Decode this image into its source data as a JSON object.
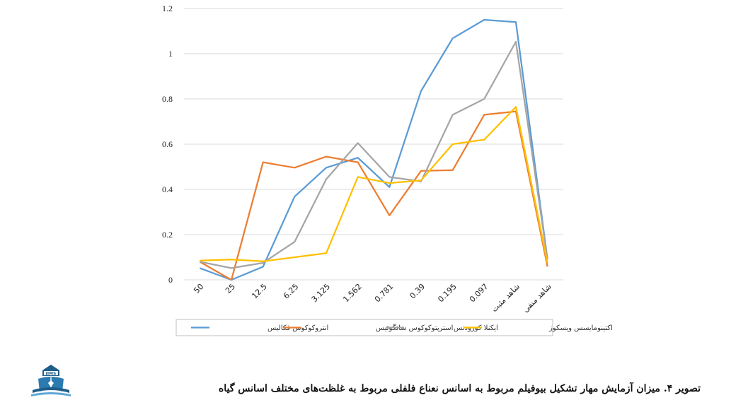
{
  "caption": "تصویر ۴. میزان آزمایش مهار تشکیل بیوفیلم مربوط به اسانس نعناع فلفلی مربوط به غلظت‌های مختلف اسانس گیاه",
  "logo": {
    "text": "JIMS"
  },
  "chart_data": {
    "type": "line",
    "categories": [
      "50",
      "25",
      "12.5",
      "6.25",
      "3.125",
      "1.562",
      "0.781",
      "0.39",
      "0.195",
      "0.097",
      "شاهد مثبت",
      "شاهد منفی"
    ],
    "ylim": [
      0,
      1.2
    ],
    "yticks": [
      "0",
      "0.2",
      "0.4",
      "0.6",
      "0.8",
      "1",
      "1.2"
    ],
    "grid": true,
    "legend_position": "bottom",
    "series": [
      {
        "name": "انتروکوکوس فکالیس",
        "color": "#5b9bd5",
        "values": [
          0.052,
          0.0,
          0.058,
          0.368,
          0.496,
          0.54,
          0.41,
          0.835,
          1.068,
          1.15,
          1.14,
          0.09
        ]
      },
      {
        "name": "استرپتوکوکوس سانگوئیس",
        "color": "#ed7d31",
        "values": [
          0.08,
          0.0,
          0.52,
          0.496,
          0.545,
          0.52,
          0.285,
          0.482,
          0.485,
          0.73,
          0.745,
          0.058
        ]
      },
      {
        "name": "ایکنلا کورودنس",
        "color": "#a5a5a5",
        "values": [
          0.08,
          0.052,
          0.075,
          0.168,
          0.445,
          0.605,
          0.455,
          0.435,
          0.73,
          0.8,
          1.053,
          0.09
        ]
      },
      {
        "name": "اکتینومایسس ویسکوز",
        "color": "#ffc000",
        "values": [
          0.085,
          0.09,
          0.082,
          0.1,
          0.118,
          0.455,
          0.428,
          0.44,
          0.6,
          0.62,
          0.765,
          0.075
        ]
      }
    ]
  }
}
